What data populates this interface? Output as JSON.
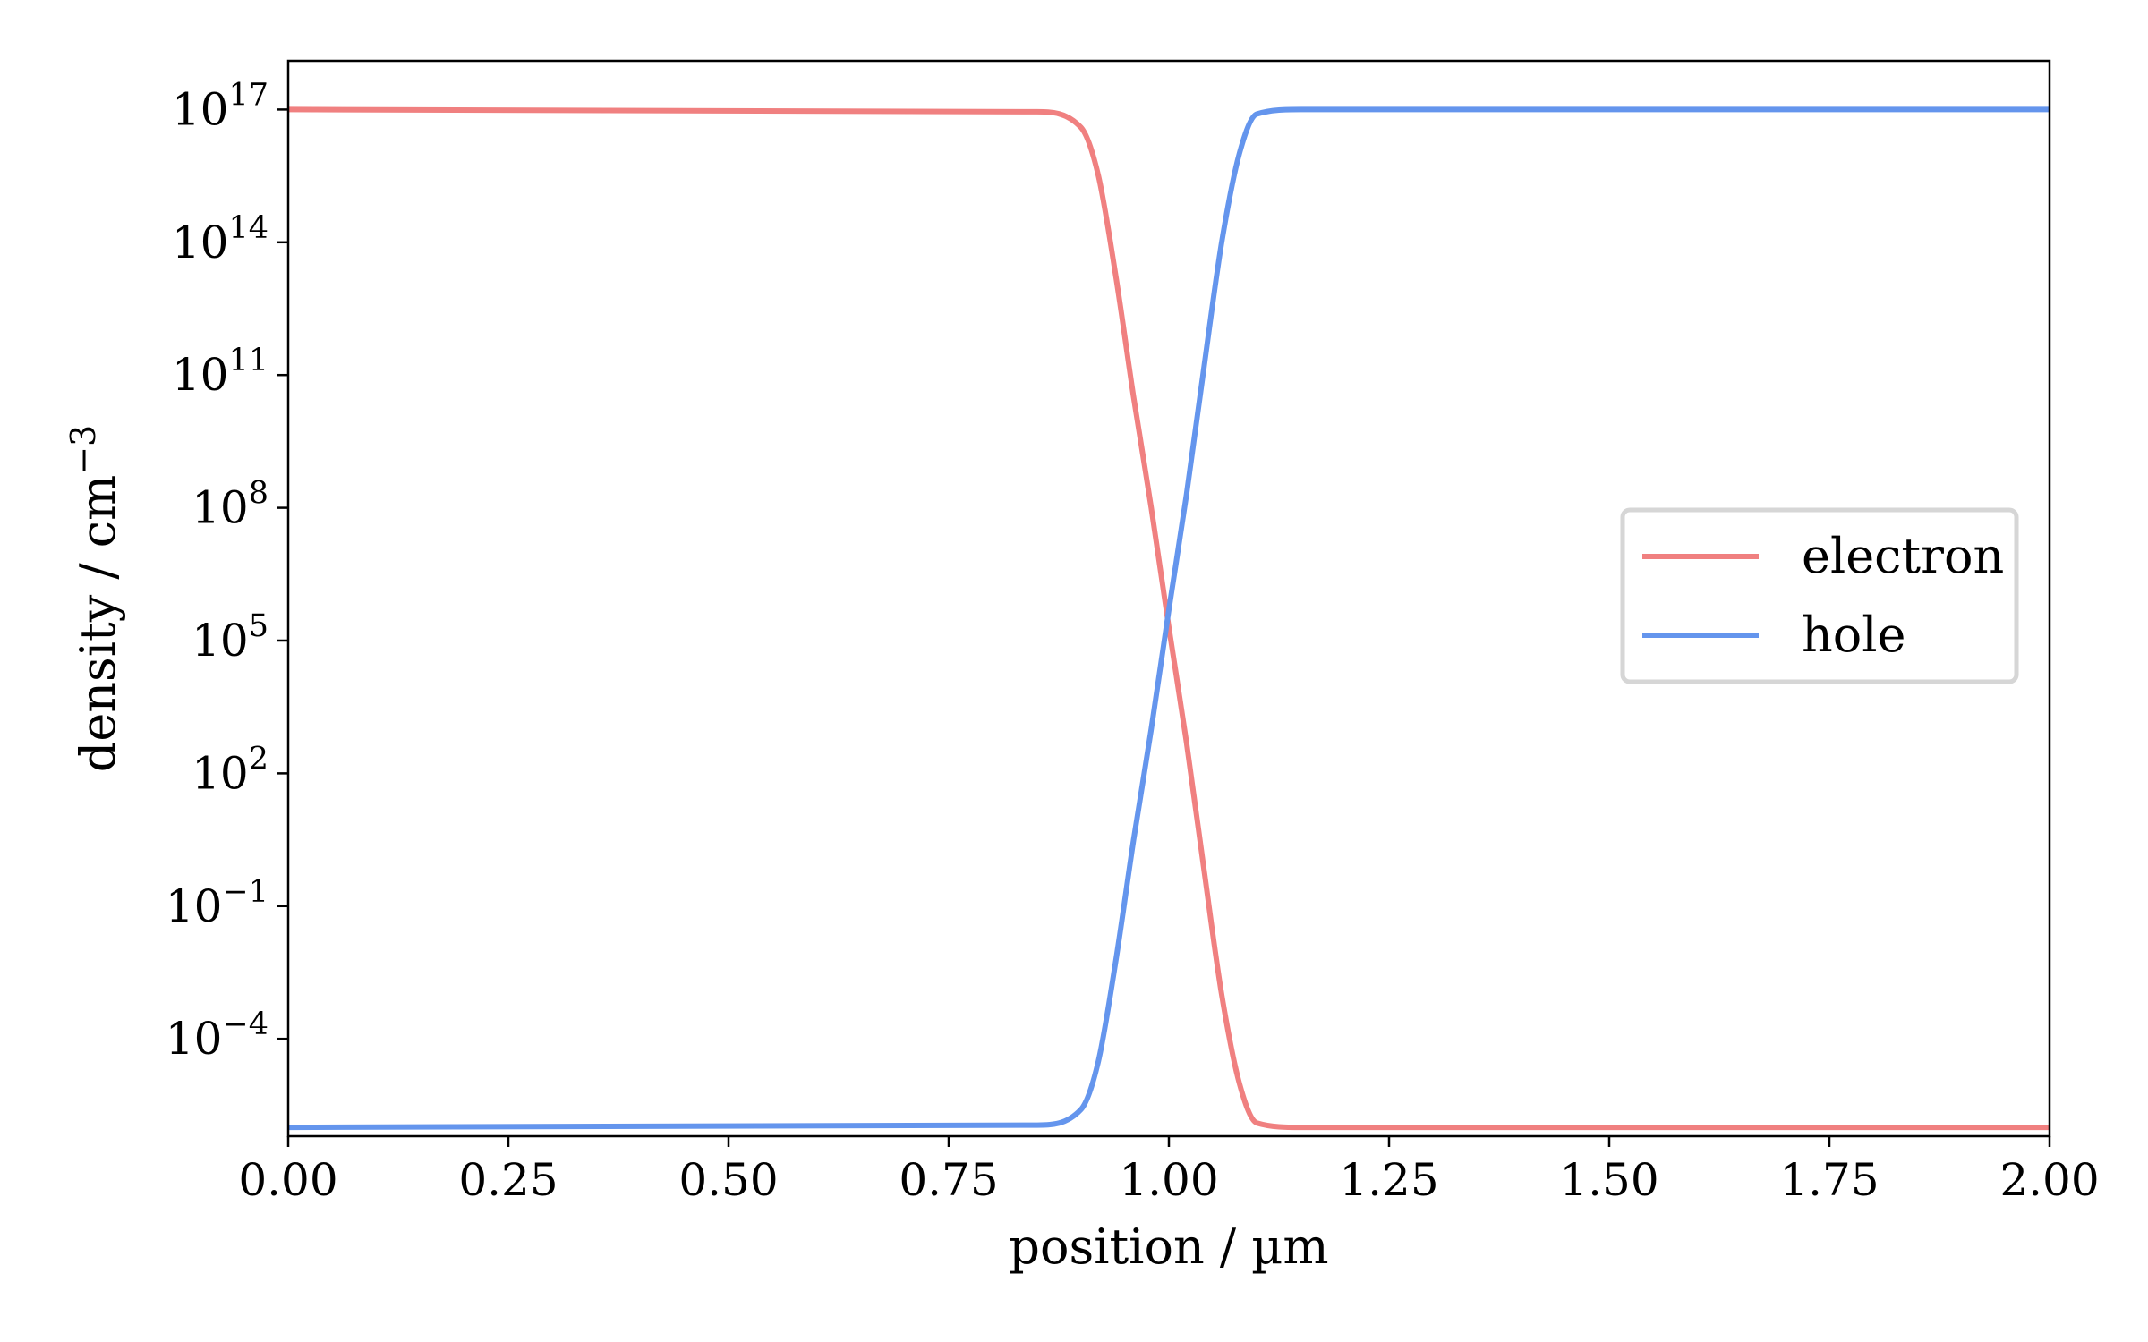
{
  "chart_data": {
    "type": "line",
    "xlabel": "position / µm",
    "ylabel_base": "density / cm",
    "ylabel_exponent": "−3",
    "xlim": [
      0,
      2
    ],
    "ylim_log10": [
      -6.2,
      18.1
    ],
    "yscale": "log",
    "grid": false,
    "legend_position": "center-right",
    "x_ticks": [
      {
        "value": 0.0,
        "label": "0.00"
      },
      {
        "value": 0.25,
        "label": "0.25"
      },
      {
        "value": 0.5,
        "label": "0.50"
      },
      {
        "value": 0.75,
        "label": "0.75"
      },
      {
        "value": 1.0,
        "label": "1.00"
      },
      {
        "value": 1.25,
        "label": "1.25"
      },
      {
        "value": 1.5,
        "label": "1.50"
      },
      {
        "value": 1.75,
        "label": "1.75"
      },
      {
        "value": 2.0,
        "label": "2.00"
      }
    ],
    "y_ticks": [
      {
        "exp": 17,
        "base": "10",
        "exp_label": "17"
      },
      {
        "exp": 14,
        "base": "10",
        "exp_label": "14"
      },
      {
        "exp": 11,
        "base": "10",
        "exp_label": "11"
      },
      {
        "exp": 8,
        "base": "10",
        "exp_label": "8"
      },
      {
        "exp": 5,
        "base": "10",
        "exp_label": "5"
      },
      {
        "exp": 2,
        "base": "10",
        "exp_label": "2"
      },
      {
        "exp": -1,
        "base": "10",
        "exp_label": "−1"
      },
      {
        "exp": -4,
        "base": "10",
        "exp_label": "−4"
      }
    ],
    "x": [
      0.0,
      0.85,
      0.9,
      0.92,
      0.94,
      0.96,
      0.98,
      1.0,
      1.02,
      1.04,
      1.06,
      1.08,
      1.1,
      1.15,
      2.0
    ],
    "series": [
      {
        "name": "electron",
        "color": "#f08080",
        "log10_values": [
          17.0,
          16.95,
          16.6,
          15.5,
          13.2,
          10.5,
          8.0,
          5.3,
          2.7,
          -0.2,
          -3.0,
          -5.0,
          -5.9,
          -6.0,
          -6.0
        ]
      },
      {
        "name": "hole",
        "color": "#6495ed",
        "log10_values": [
          -6.0,
          -5.95,
          -5.6,
          -4.5,
          -2.2,
          0.5,
          3.0,
          5.7,
          8.3,
          11.2,
          14.0,
          16.0,
          16.9,
          17.0,
          17.0
        ]
      }
    ]
  }
}
